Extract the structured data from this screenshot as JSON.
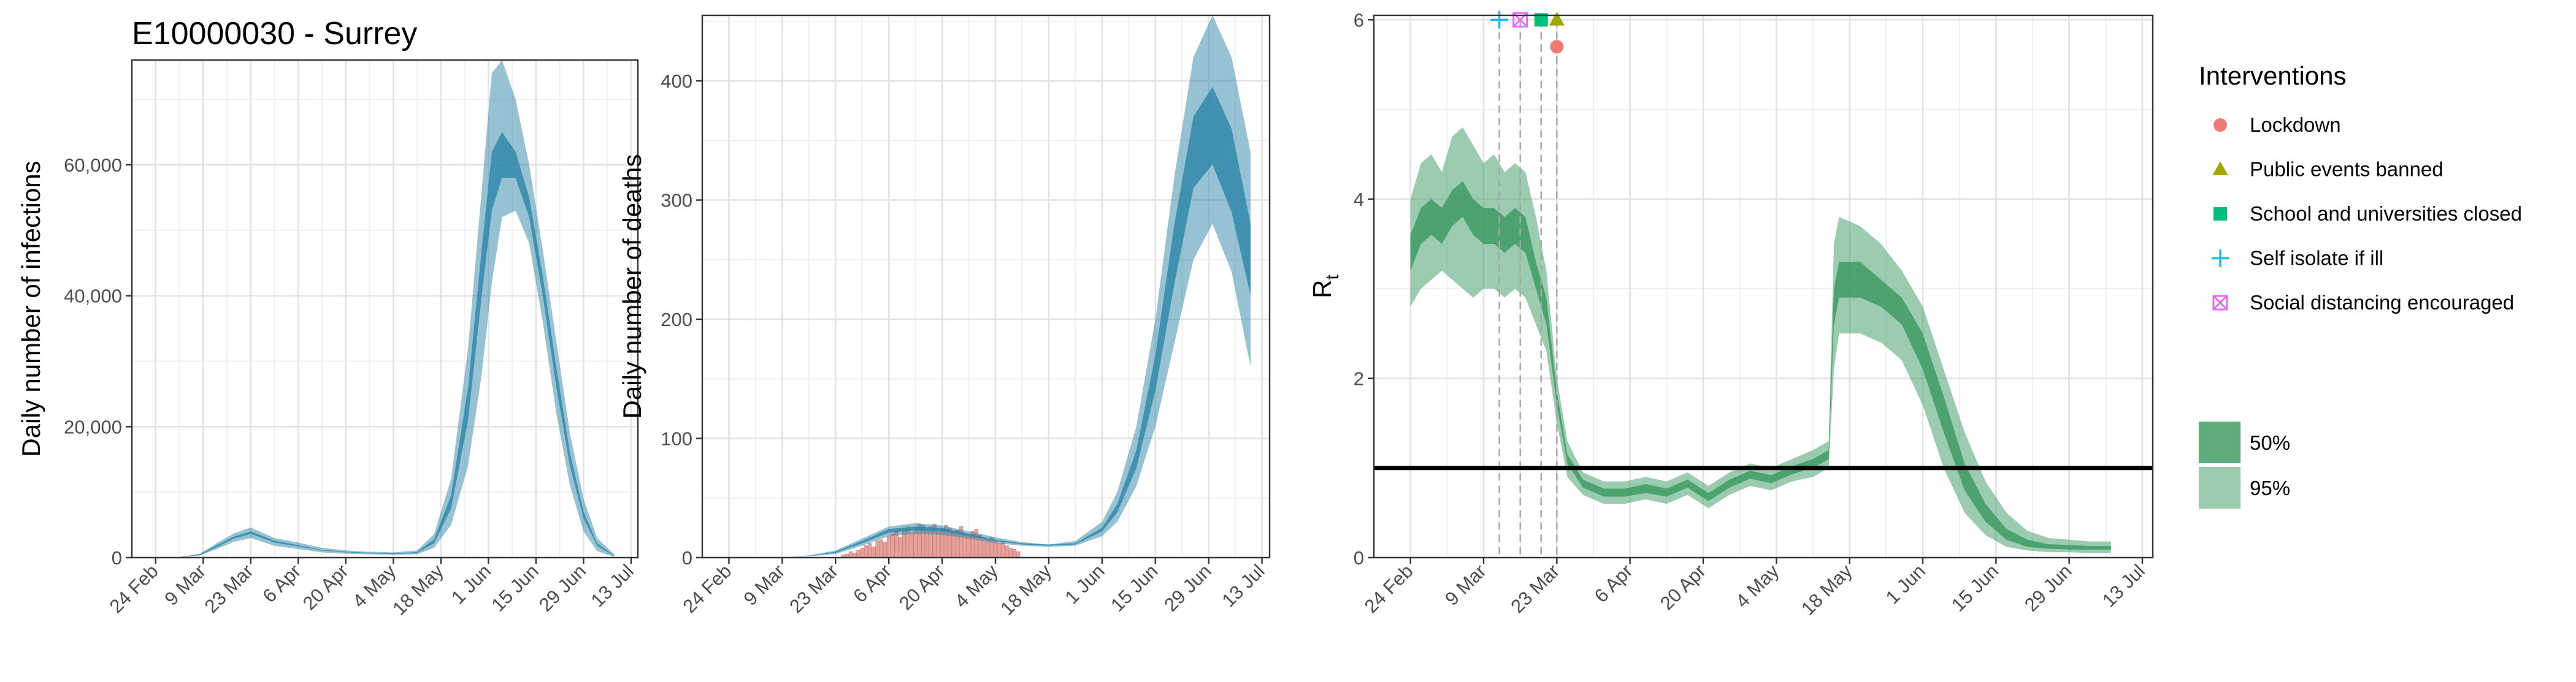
{
  "colors": {
    "teal": "#2e86a8",
    "green": "#3a9a62",
    "bars": "#e8a09b",
    "lockdown": "#f07b72",
    "public_events": "#a3a500",
    "school": "#00bf7d",
    "self_isolate": "#20b8e8",
    "social_distancing": "#e76bf3"
  },
  "chart_data": [
    {
      "id": "infections",
      "type": "area",
      "title": "E10000030 - Surrey",
      "xlabel": "",
      "ylabel": "Daily number of infections",
      "x_ticks": [
        "24 Feb",
        "9 Mar",
        "23 Mar",
        "6 Apr",
        "20 Apr",
        "4 May",
        "18 May",
        "1 Jun",
        "15 Jun",
        "29 Jun",
        "13 Jul"
      ],
      "xlim": [
        "2020-02-17",
        "2020-07-15"
      ],
      "ylim": [
        0,
        76000
      ],
      "y_ticks": [
        0,
        20000,
        40000,
        60000
      ],
      "y_tick_labels": [
        "0",
        "20,000",
        "40,000",
        "60,000"
      ],
      "grid": true,
      "series": [
        {
          "band": "95%",
          "x": [
            "2020-02-20",
            "2020-03-01",
            "2020-03-08",
            "2020-03-13",
            "2020-03-18",
            "2020-03-23",
            "2020-03-30",
            "2020-04-06",
            "2020-04-13",
            "2020-04-20",
            "2020-04-27",
            "2020-05-04",
            "2020-05-11",
            "2020-05-16",
            "2020-05-21",
            "2020-05-26",
            "2020-05-30",
            "2020-06-02",
            "2020-06-05",
            "2020-06-09",
            "2020-06-13",
            "2020-06-17",
            "2020-06-21",
            "2020-06-25",
            "2020-06-29",
            "2020-07-03",
            "2020-07-08"
          ],
          "lower": [
            0,
            0,
            300,
            1300,
            2400,
            3000,
            1800,
            1300,
            800,
            600,
            500,
            400,
            500,
            1500,
            5000,
            14000,
            28000,
            42000,
            52000,
            53000,
            48000,
            36000,
            22000,
            11000,
            4000,
            1000,
            100
          ],
          "upper": [
            0,
            0,
            600,
            2200,
            3700,
            4600,
            3000,
            2300,
            1500,
            1100,
            900,
            800,
            1100,
            3600,
            12000,
            32000,
            56000,
            74000,
            76000,
            70000,
            60000,
            47000,
            33000,
            19000,
            9000,
            3000,
            500
          ]
        },
        {
          "band": "50%",
          "x": [
            "2020-02-20",
            "2020-03-01",
            "2020-03-08",
            "2020-03-13",
            "2020-03-18",
            "2020-03-23",
            "2020-03-30",
            "2020-04-06",
            "2020-04-13",
            "2020-04-20",
            "2020-04-27",
            "2020-05-04",
            "2020-05-11",
            "2020-05-16",
            "2020-05-21",
            "2020-05-26",
            "2020-05-30",
            "2020-06-02",
            "2020-06-05",
            "2020-06-09",
            "2020-06-13",
            "2020-06-17",
            "2020-06-21",
            "2020-06-25",
            "2020-06-29",
            "2020-07-03",
            "2020-07-08"
          ],
          "lower": [
            0,
            0,
            400,
            1600,
            2900,
            3600,
            2300,
            1700,
            1100,
            800,
            650,
            550,
            700,
            2200,
            7500,
            21000,
            40000,
            53000,
            58000,
            58000,
            52000,
            40000,
            26000,
            14000,
            6000,
            1800,
            250
          ],
          "upper": [
            0,
            0,
            500,
            1900,
            3200,
            4000,
            2600,
            1900,
            1200,
            900,
            750,
            650,
            850,
            2800,
            9500,
            26000,
            47000,
            62000,
            65000,
            62000,
            55000,
            43000,
            29000,
            16000,
            7000,
            2200,
            350
          ]
        }
      ]
    },
    {
      "id": "deaths",
      "type": "area",
      "title": "",
      "xlabel": "",
      "ylabel": "Daily number of deaths",
      "x_ticks": [
        "24 Feb",
        "9 Mar",
        "23 Mar",
        "6 Apr",
        "20 Apr",
        "4 May",
        "18 May",
        "1 Jun",
        "15 Jun",
        "29 Jun",
        "13 Jul"
      ],
      "xlim": [
        "2020-02-17",
        "2020-07-15"
      ],
      "ylim": [
        0,
        455
      ],
      "y_ticks": [
        0,
        100,
        200,
        300,
        400
      ],
      "y_tick_labels": [
        "0",
        "100",
        "200",
        "300",
        "400"
      ],
      "grid": true,
      "series": [
        {
          "band": "95%",
          "x": [
            "2020-02-24",
            "2020-03-09",
            "2020-03-16",
            "2020-03-23",
            "2020-03-30",
            "2020-04-06",
            "2020-04-13",
            "2020-04-20",
            "2020-04-27",
            "2020-05-04",
            "2020-05-11",
            "2020-05-18",
            "2020-05-25",
            "2020-06-01",
            "2020-06-05",
            "2020-06-10",
            "2020-06-15",
            "2020-06-20",
            "2020-06-25",
            "2020-06-30",
            "2020-07-05",
            "2020-07-10"
          ],
          "lower": [
            0,
            0,
            1,
            3,
            10,
            18,
            20,
            19,
            16,
            12,
            10,
            9,
            10,
            18,
            30,
            60,
            110,
            180,
            250,
            280,
            240,
            160
          ],
          "upper": [
            0,
            0,
            2,
            6,
            16,
            26,
            29,
            27,
            22,
            17,
            13,
            11,
            14,
            30,
            55,
            110,
            200,
            320,
            420,
            455,
            420,
            340
          ]
        },
        {
          "band": "50%",
          "x": [
            "2020-02-24",
            "2020-03-09",
            "2020-03-16",
            "2020-03-23",
            "2020-03-30",
            "2020-04-06",
            "2020-04-13",
            "2020-04-20",
            "2020-04-27",
            "2020-05-04",
            "2020-05-11",
            "2020-05-18",
            "2020-05-25",
            "2020-06-01",
            "2020-06-05",
            "2020-06-10",
            "2020-06-15",
            "2020-06-20",
            "2020-06-25",
            "2020-06-30",
            "2020-07-05",
            "2020-07-10"
          ],
          "lower": [
            0,
            0,
            1,
            4,
            12,
            21,
            23,
            22,
            18,
            14,
            11,
            10,
            11,
            22,
            38,
            75,
            140,
            230,
            310,
            330,
            290,
            220
          ],
          "upper": [
            0,
            0,
            1,
            5,
            14,
            24,
            26,
            25,
            20,
            15,
            12,
            11,
            12,
            25,
            45,
            90,
            170,
            280,
            370,
            395,
            360,
            280
          ]
        }
      ],
      "bars": {
        "x": [
          "2020-03-25",
          "2020-03-26",
          "2020-03-27",
          "2020-03-28",
          "2020-03-29",
          "2020-03-30",
          "2020-03-31",
          "2020-04-01",
          "2020-04-02",
          "2020-04-03",
          "2020-04-04",
          "2020-04-05",
          "2020-04-06",
          "2020-04-07",
          "2020-04-08",
          "2020-04-09",
          "2020-04-10",
          "2020-04-11",
          "2020-04-12",
          "2020-04-13",
          "2020-04-14",
          "2020-04-15",
          "2020-04-16",
          "2020-04-17",
          "2020-04-18",
          "2020-04-19",
          "2020-04-20",
          "2020-04-21",
          "2020-04-22",
          "2020-04-23",
          "2020-04-24",
          "2020-04-25",
          "2020-04-26",
          "2020-04-27",
          "2020-04-28",
          "2020-04-29",
          "2020-04-30",
          "2020-05-01",
          "2020-05-02",
          "2020-05-03",
          "2020-05-04",
          "2020-05-05",
          "2020-05-06",
          "2020-05-07",
          "2020-05-08",
          "2020-05-09",
          "2020-05-10"
        ],
        "values": [
          2,
          3,
          5,
          4,
          6,
          8,
          10,
          12,
          9,
          14,
          15,
          13,
          18,
          20,
          22,
          17,
          24,
          26,
          21,
          25,
          28,
          27,
          23,
          26,
          28,
          22,
          24,
          27,
          25,
          21,
          23,
          26,
          20,
          18,
          22,
          24,
          19,
          16,
          15,
          17,
          14,
          12,
          13,
          10,
          8,
          7,
          5
        ]
      }
    },
    {
      "id": "rt",
      "type": "area",
      "title": "",
      "xlabel": "",
      "ylabel": "Rt",
      "ylabel_main": "R",
      "ylabel_sub": "t",
      "x_ticks": [
        "24 Feb",
        "9 Mar",
        "23 Mar",
        "6 Apr",
        "20 Apr",
        "4 May",
        "18 May",
        "1 Jun",
        "15 Jun",
        "29 Jun",
        "13 Jul"
      ],
      "xlim": [
        "2020-02-17",
        "2020-07-15"
      ],
      "ylim": [
        0,
        6.05
      ],
      "y_ticks": [
        0,
        2,
        4,
        6
      ],
      "y_tick_labels": [
        "0",
        "2",
        "4",
        "6"
      ],
      "grid": true,
      "reference_line": 1,
      "intervention_dates": [
        "2020-03-12",
        "2020-03-16",
        "2020-03-20",
        "2020-03-23"
      ],
      "intervention_markers": [
        {
          "key": "self_isolate",
          "date": "2020-03-12",
          "y": 6.0
        },
        {
          "key": "social_distancing",
          "date": "2020-03-16",
          "y": 6.0
        },
        {
          "key": "school",
          "date": "2020-03-20",
          "y": 6.0
        },
        {
          "key": "public_events",
          "date": "2020-03-23",
          "y": 6.0
        },
        {
          "key": "lockdown",
          "date": "2020-03-23",
          "y": 5.7
        }
      ],
      "series": [
        {
          "band": "95%",
          "x": [
            "2020-02-24",
            "2020-02-26",
            "2020-02-28",
            "2020-03-01",
            "2020-03-03",
            "2020-03-05",
            "2020-03-07",
            "2020-03-09",
            "2020-03-11",
            "2020-03-13",
            "2020-03-15",
            "2020-03-17",
            "2020-03-19",
            "2020-03-21",
            "2020-03-23",
            "2020-03-25",
            "2020-03-28",
            "2020-04-01",
            "2020-04-05",
            "2020-04-09",
            "2020-04-13",
            "2020-04-17",
            "2020-04-21",
            "2020-04-25",
            "2020-04-29",
            "2020-05-03",
            "2020-05-07",
            "2020-05-11",
            "2020-05-14",
            "2020-05-15",
            "2020-05-16",
            "2020-05-20",
            "2020-05-24",
            "2020-05-28",
            "2020-06-01",
            "2020-06-05",
            "2020-06-09",
            "2020-06-13",
            "2020-06-17",
            "2020-06-21",
            "2020-06-25",
            "2020-06-29",
            "2020-07-03",
            "2020-07-07"
          ],
          "lower": [
            2.8,
            3.0,
            3.1,
            3.2,
            3.1,
            3.0,
            2.9,
            3.0,
            3.0,
            2.9,
            3.0,
            2.9,
            2.6,
            2.3,
            1.5,
            0.9,
            0.7,
            0.6,
            0.6,
            0.65,
            0.6,
            0.7,
            0.55,
            0.7,
            0.8,
            0.75,
            0.85,
            0.9,
            1.0,
            2.1,
            2.5,
            2.5,
            2.4,
            2.2,
            1.7,
            1.0,
            0.5,
            0.25,
            0.12,
            0.08,
            0.06,
            0.06,
            0.05,
            0.05
          ],
          "upper": [
            4.0,
            4.4,
            4.5,
            4.3,
            4.7,
            4.8,
            4.6,
            4.4,
            4.5,
            4.3,
            4.4,
            4.3,
            3.8,
            3.2,
            2.0,
            1.3,
            0.95,
            0.85,
            0.85,
            0.9,
            0.85,
            0.95,
            0.8,
            0.95,
            1.05,
            1.0,
            1.1,
            1.2,
            1.3,
            3.5,
            3.8,
            3.7,
            3.5,
            3.2,
            2.8,
            2.1,
            1.4,
            0.85,
            0.5,
            0.3,
            0.22,
            0.2,
            0.18,
            0.18
          ]
        },
        {
          "band": "50%",
          "x": [
            "2020-02-24",
            "2020-02-26",
            "2020-02-28",
            "2020-03-01",
            "2020-03-03",
            "2020-03-05",
            "2020-03-07",
            "2020-03-09",
            "2020-03-11",
            "2020-03-13",
            "2020-03-15",
            "2020-03-17",
            "2020-03-19",
            "2020-03-21",
            "2020-03-23",
            "2020-03-25",
            "2020-03-28",
            "2020-04-01",
            "2020-04-05",
            "2020-04-09",
            "2020-04-13",
            "2020-04-17",
            "2020-04-21",
            "2020-04-25",
            "2020-04-29",
            "2020-05-03",
            "2020-05-07",
            "2020-05-11",
            "2020-05-14",
            "2020-05-15",
            "2020-05-16",
            "2020-05-20",
            "2020-05-24",
            "2020-05-28",
            "2020-06-01",
            "2020-06-05",
            "2020-06-09",
            "2020-06-13",
            "2020-06-17",
            "2020-06-21",
            "2020-06-25",
            "2020-06-29",
            "2020-07-03",
            "2020-07-07"
          ],
          "lower": [
            3.2,
            3.5,
            3.6,
            3.5,
            3.7,
            3.8,
            3.6,
            3.5,
            3.5,
            3.4,
            3.5,
            3.4,
            3.0,
            2.6,
            1.7,
            1.05,
            0.78,
            0.68,
            0.68,
            0.72,
            0.68,
            0.78,
            0.63,
            0.78,
            0.88,
            0.83,
            0.93,
            1.0,
            1.1,
            2.6,
            2.9,
            2.9,
            2.8,
            2.6,
            2.1,
            1.4,
            0.75,
            0.4,
            0.2,
            0.12,
            0.1,
            0.09,
            0.09,
            0.09
          ],
          "upper": [
            3.6,
            3.9,
            4.0,
            3.9,
            4.1,
            4.2,
            4.0,
            3.9,
            3.9,
            3.8,
            3.9,
            3.8,
            3.3,
            2.9,
            1.85,
            1.15,
            0.87,
            0.77,
            0.77,
            0.82,
            0.77,
            0.87,
            0.72,
            0.87,
            0.97,
            0.92,
            1.02,
            1.1,
            1.2,
            3.0,
            3.3,
            3.3,
            3.1,
            2.9,
            2.5,
            1.8,
            1.05,
            0.6,
            0.32,
            0.2,
            0.15,
            0.14,
            0.13,
            0.13
          ]
        }
      ]
    }
  ],
  "legend": {
    "interventions_title": "Interventions",
    "interventions": [
      {
        "key": "lockdown",
        "label": "Lockdown",
        "shape": "circle"
      },
      {
        "key": "public_events",
        "label": "Public events banned",
        "shape": "triangle"
      },
      {
        "key": "school",
        "label": "School and universities closed",
        "shape": "square"
      },
      {
        "key": "self_isolate",
        "label": "Self isolate if ill",
        "shape": "plus"
      },
      {
        "key": "social_distancing",
        "label": "Social distancing encouraged",
        "shape": "boxed-x"
      }
    ],
    "bands": [
      {
        "label": "50%",
        "opacity": 0.82
      },
      {
        "label": "95%",
        "opacity": 0.5
      }
    ]
  }
}
